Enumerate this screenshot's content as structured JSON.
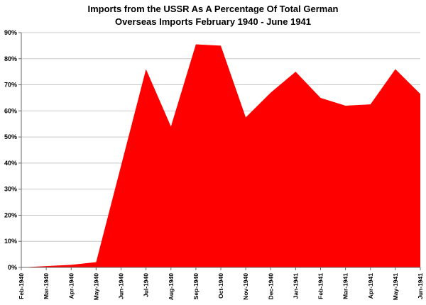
{
  "title": {
    "line1": "Imports from the USSR As A Percentage Of Total German",
    "line2": "Overseas Imports February 1940 - June 1941"
  },
  "chart_data": {
    "type": "area",
    "title": "Imports from the USSR As A Percentage Of Total German Overseas Imports February 1940 - June 1941",
    "xlabel": "",
    "ylabel": "",
    "categories": [
      "Feb-1940",
      "Mar-1940",
      "Apr-1940",
      "May-1940",
      "Jun-1940",
      "Jul-1940",
      "Aug-1940",
      "Sep-1940",
      "Oct-1940",
      "Nov-1940",
      "Dec-1940",
      "Jan-1941",
      "Feb-1941",
      "Mar-1941",
      "Apr-1941",
      "May-1941",
      "Jun-1941"
    ],
    "values": [
      0,
      0.5,
      1,
      2,
      39,
      76,
      54,
      85.5,
      85,
      57.5,
      67,
      75,
      65,
      62,
      62.5,
      76,
      66.5
    ],
    "ylim": [
      0,
      90
    ],
    "ytick_step": 10,
    "ytick_suffix": "%",
    "grid": true,
    "legend": "none",
    "series_color": "#ff0000",
    "grid_color": "#c9c9c9",
    "axis_color": "#6a6a6a",
    "label_color": "#000000"
  }
}
